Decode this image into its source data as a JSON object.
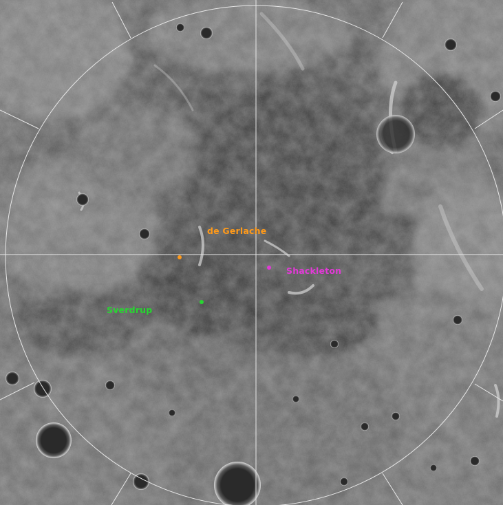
{
  "map": {
    "projection": "polar stereographic",
    "grid": {
      "circle": true,
      "meridians": true,
      "tick_count": 8
    }
  },
  "features": [
    {
      "id": "de-gerlache",
      "label": "de Gerlache",
      "color": "#ff9a1a"
    },
    {
      "id": "shackleton",
      "label": "Shackleton",
      "color": "#e23ad7"
    },
    {
      "id": "sverdrup",
      "label": "Sverdrup",
      "color": "#27d631"
    }
  ],
  "colors": {
    "terrain_dark": "#3a3a3a",
    "terrain_mid": "#6b6b6b",
    "terrain_light": "#b9b9b9",
    "grid_line": "#e8e8e8"
  }
}
